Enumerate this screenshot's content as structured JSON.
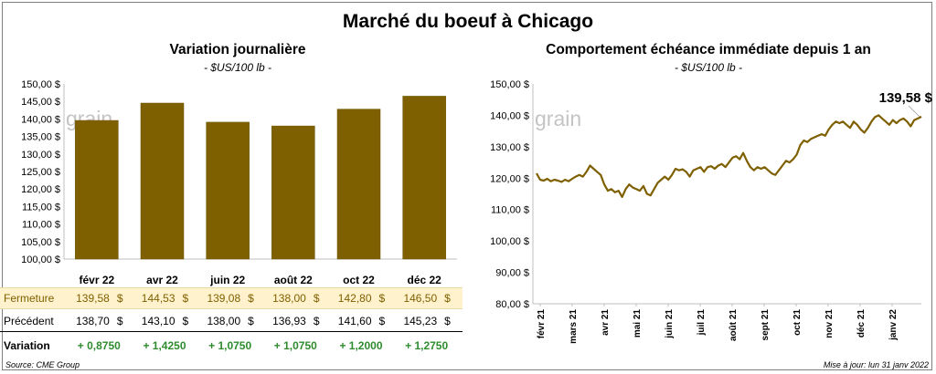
{
  "title": "Marché du boeuf à Chicago",
  "left_title": "Variation journalière",
  "left_unit": "- $US/100 lb -",
  "right_title": "Comportement  échéance immédiate depuis 1 an",
  "right_unit": "- $US/100 lb -",
  "watermark": "grain",
  "colors": {
    "bar": "#7f6000",
    "line": "#7f6000",
    "highlight_row": "#fff2cc",
    "positive": "#2e8b2e"
  },
  "chart_data": [
    {
      "type": "bar",
      "categories": [
        "févr 22",
        "avr 22",
        "juin 22",
        "août 22",
        "oct 22",
        "déc 22"
      ],
      "values": [
        139.58,
        144.53,
        139.08,
        138.0,
        142.8,
        146.5
      ],
      "ylim": [
        100,
        150
      ],
      "yticks": [
        "100,00 $",
        "105,00 $",
        "110,00 $",
        "115,00 $",
        "120,00 $",
        "125,00 $",
        "130,00 $",
        "135,00 $",
        "140,00 $",
        "145,00 $",
        "150,00 $"
      ],
      "grid": false
    },
    {
      "type": "line",
      "ylim": [
        80,
        150
      ],
      "yticks": [
        "80,00 $",
        "90,00 $",
        "100,00 $",
        "110,00 $",
        "120,00 $",
        "130,00 $",
        "140,00 $",
        "150,00 $"
      ],
      "xticks": [
        "févr 21",
        "mars 21",
        "avr 21",
        "mai 21",
        "juin 21",
        "juil 21",
        "août 21",
        "sept 21",
        "oct 21",
        "nov 21",
        "déc 21",
        "janv 22"
      ],
      "last_label": "139,58 $",
      "grid": false,
      "values": [
        121.5,
        119.5,
        119.2,
        119.8,
        119.0,
        119.5,
        119.2,
        118.8,
        119.5,
        119.0,
        119.8,
        120.5,
        121.0,
        120.5,
        122.0,
        124.0,
        123.0,
        122.0,
        121.0,
        118.0,
        116.0,
        116.5,
        115.5,
        116.0,
        114.0,
        116.5,
        118.0,
        117.0,
        116.5,
        116.0,
        117.5,
        115.0,
        114.5,
        116.5,
        118.5,
        119.5,
        120.5,
        119.5,
        121.0,
        123.0,
        122.5,
        122.8,
        122.0,
        120.5,
        122.5,
        123.0,
        123.5,
        122.0,
        123.5,
        123.8,
        123.0,
        124.0,
        124.5,
        123.5,
        125.0,
        126.5,
        127.0,
        126.0,
        128.0,
        125.5,
        123.5,
        122.5,
        123.5,
        123.0,
        123.5,
        122.5,
        121.5,
        121.0,
        122.5,
        124.0,
        125.5,
        125.0,
        126.0,
        127.5,
        130.5,
        132.0,
        131.5,
        132.5,
        133.0,
        133.5,
        134.0,
        133.5,
        135.5,
        137.0,
        138.0,
        137.5,
        138.0,
        137.0,
        136.0,
        138.0,
        137.0,
        135.5,
        134.5,
        136.0,
        138.0,
        139.5,
        140.0,
        139.0,
        138.0,
        137.0,
        138.5,
        137.5,
        138.5,
        139.0,
        138.0,
        136.5,
        138.5,
        139.0,
        139.58
      ]
    }
  ],
  "table": {
    "rows": [
      {
        "label": "Fermeture",
        "values": [
          "139,58",
          "144,53",
          "139,08",
          "138,00",
          "142,80",
          "146,50"
        ],
        "currency": "$"
      },
      {
        "label": "Précédent",
        "values": [
          "138,70",
          "143,10",
          "138,00",
          "136,93",
          "141,60",
          "145,23"
        ],
        "currency": "$"
      },
      {
        "label": "Variation",
        "values": [
          "+ 0,8750",
          "+ 1,4250",
          "+ 1,0750",
          "+ 1,0750",
          "+ 1,2000",
          "+ 1,2750"
        ]
      }
    ]
  },
  "source": "Source: CME Group",
  "updated": "Mise à jour: lun 31 janv 2022"
}
